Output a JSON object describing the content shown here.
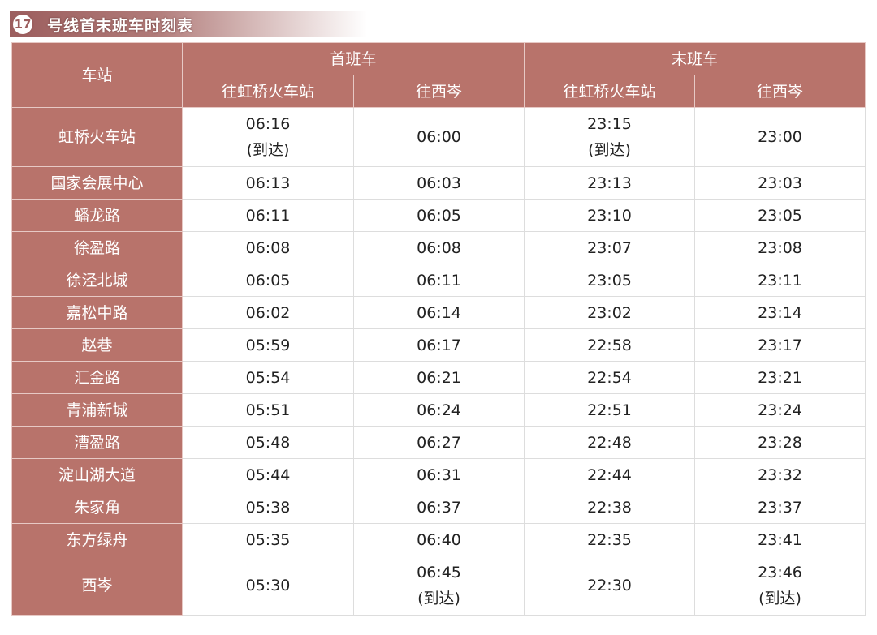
{
  "title": {
    "number": "17",
    "text": "号线首末班车时刻表"
  },
  "colors": {
    "header_bg": "#b8736b"
  },
  "headers": {
    "station": "车站",
    "first": "首班车",
    "last": "末班车",
    "to_hongqiao": "往虹桥火车站",
    "to_xicen": "往西岑"
  },
  "rows": [
    {
      "station": "虹桥火车站",
      "f1": "06:16",
      "f1n": "(到达)",
      "f2": "06:00",
      "l1": "23:15",
      "l1n": "(到达)",
      "l2": "23:00"
    },
    {
      "station": "国家会展中心",
      "f1": "06:13",
      "f2": "06:03",
      "l1": "23:13",
      "l2": "23:03"
    },
    {
      "station": "蟠龙路",
      "f1": "06:11",
      "f2": "06:05",
      "l1": "23:10",
      "l2": "23:05"
    },
    {
      "station": "徐盈路",
      "f1": "06:08",
      "f2": "06:08",
      "l1": "23:07",
      "l2": "23:08"
    },
    {
      "station": "徐泾北城",
      "f1": "06:05",
      "f2": "06:11",
      "l1": "23:05",
      "l2": "23:11"
    },
    {
      "station": "嘉松中路",
      "f1": "06:02",
      "f2": "06:14",
      "l1": "23:02",
      "l2": "23:14"
    },
    {
      "station": "赵巷",
      "f1": "05:59",
      "f2": "06:17",
      "l1": "22:58",
      "l2": "23:17"
    },
    {
      "station": "汇金路",
      "f1": "05:54",
      "f2": "06:21",
      "l1": "22:54",
      "l2": "23:21"
    },
    {
      "station": "青浦新城",
      "f1": "05:51",
      "f2": "06:24",
      "l1": "22:51",
      "l2": "23:24"
    },
    {
      "station": "漕盈路",
      "f1": "05:48",
      "f2": "06:27",
      "l1": "22:48",
      "l2": "23:28"
    },
    {
      "station": "淀山湖大道",
      "f1": "05:44",
      "f2": "06:31",
      "l1": "22:44",
      "l2": "23:32"
    },
    {
      "station": "朱家角",
      "f1": "05:38",
      "f2": "06:37",
      "l1": "22:38",
      "l2": "23:37"
    },
    {
      "station": "东方绿舟",
      "f1": "05:35",
      "f2": "06:40",
      "l1": "22:35",
      "l2": "23:41"
    },
    {
      "station": "西岑",
      "f1": "05:30",
      "f2": "06:45",
      "f2n": "(到达)",
      "l1": "22:30",
      "l2": "23:46",
      "l2n": "(到达)"
    }
  ]
}
